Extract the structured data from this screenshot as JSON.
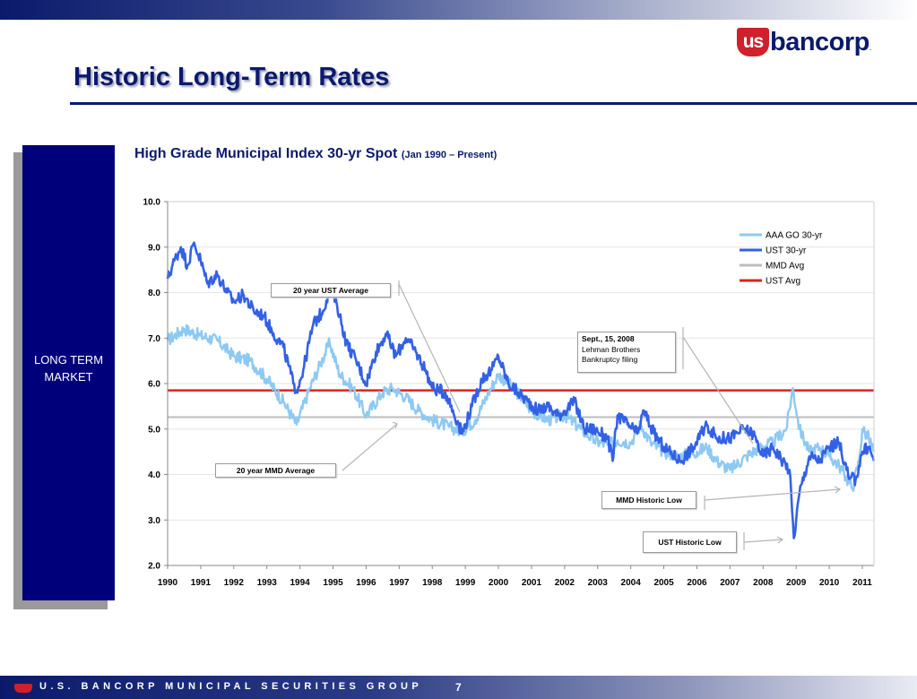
{
  "page": {
    "title": "Historic Long-Term Rates",
    "logo": {
      "mark": "us",
      "text": "bancorp",
      "reg": "."
    },
    "side_label": "LONG TERM MARKET",
    "footer": "U.S. BANCORP MUNICIPAL SECURITIES GROUP",
    "page_number": "7",
    "colors": {
      "navy": "#0b1a6b",
      "box": "#00007a",
      "red": "#d0202c"
    }
  },
  "chart_data": {
    "type": "line",
    "title": "High Grade Municipal Index 30-yr Spot",
    "subtitle": "(Jan 1990 – Present)",
    "ylim": [
      2.0,
      10.0
    ],
    "y_ticks": [
      "10.0",
      "9.0",
      "8.0",
      "7.0",
      "6.0",
      "5.0",
      "4.0",
      "3.0",
      "2.0"
    ],
    "x_ticks": [
      "1990",
      "1991",
      "1992",
      "1993",
      "1994",
      "1995",
      "1996",
      "1997",
      "1998",
      "1999",
      "2000",
      "2001",
      "2002",
      "2003",
      "2004",
      "2005",
      "2006",
      "2007",
      "2008",
      "2009",
      "2010",
      "2011"
    ],
    "grid": "horizontal",
    "legend": "top-right",
    "series": [
      {
        "name": "AAA GO 30-yr",
        "color": "#8ec9f2",
        "points": [
          [
            1990.0,
            6.95
          ],
          [
            1990.5,
            7.2
          ],
          [
            1991.0,
            7.05
          ],
          [
            1991.5,
            6.95
          ],
          [
            1992.0,
            6.6
          ],
          [
            1992.5,
            6.5
          ],
          [
            1993.0,
            6.1
          ],
          [
            1993.5,
            5.6
          ],
          [
            1993.9,
            5.1
          ],
          [
            1994.3,
            5.9
          ],
          [
            1994.6,
            6.4
          ],
          [
            1994.9,
            6.9
          ],
          [
            1995.2,
            6.2
          ],
          [
            1995.6,
            5.9
          ],
          [
            1996.0,
            5.3
          ],
          [
            1996.5,
            5.8
          ],
          [
            1996.8,
            5.9
          ],
          [
            1997.2,
            5.7
          ],
          [
            1997.6,
            5.4
          ],
          [
            1998.0,
            5.2
          ],
          [
            1998.5,
            5.05
          ],
          [
            1998.9,
            4.95
          ],
          [
            1999.3,
            5.2
          ],
          [
            1999.7,
            5.8
          ],
          [
            2000.0,
            6.2
          ],
          [
            2000.3,
            6.0
          ],
          [
            2000.7,
            5.7
          ],
          [
            2001.0,
            5.4
          ],
          [
            2001.5,
            5.2
          ],
          [
            2002.0,
            5.3
          ],
          [
            2002.5,
            5.0
          ],
          [
            2002.9,
            4.75
          ],
          [
            2003.3,
            4.65
          ],
          [
            2003.6,
            4.75
          ],
          [
            2004.0,
            4.7
          ],
          [
            2004.3,
            5.1
          ],
          [
            2004.6,
            4.7
          ],
          [
            2005.0,
            4.5
          ],
          [
            2005.5,
            4.4
          ],
          [
            2006.0,
            4.5
          ],
          [
            2006.3,
            4.6
          ],
          [
            2006.6,
            4.3
          ],
          [
            2007.0,
            4.1
          ],
          [
            2007.5,
            4.4
          ],
          [
            2007.9,
            4.6
          ],
          [
            2008.3,
            4.7
          ],
          [
            2008.7,
            5.0
          ],
          [
            2008.9,
            5.9
          ],
          [
            2009.1,
            5.0
          ],
          [
            2009.4,
            4.5
          ],
          [
            2009.7,
            4.6
          ],
          [
            2010.0,
            4.4
          ],
          [
            2010.3,
            4.2
          ],
          [
            2010.7,
            3.7
          ],
          [
            2010.9,
            4.3
          ],
          [
            2011.0,
            5.0
          ],
          [
            2011.2,
            4.8
          ],
          [
            2011.35,
            4.5
          ]
        ]
      },
      {
        "name": "UST 30-yr",
        "color": "#3361e6",
        "points": [
          [
            1990.0,
            8.3
          ],
          [
            1990.2,
            8.7
          ],
          [
            1990.4,
            9.0
          ],
          [
            1990.6,
            8.6
          ],
          [
            1990.8,
            9.1
          ],
          [
            1991.0,
            8.7
          ],
          [
            1991.2,
            8.2
          ],
          [
            1991.5,
            8.4
          ],
          [
            1991.8,
            8.0
          ],
          [
            1992.0,
            7.8
          ],
          [
            1992.3,
            7.95
          ],
          [
            1992.6,
            7.6
          ],
          [
            1992.9,
            7.5
          ],
          [
            1993.2,
            7.1
          ],
          [
            1993.5,
            6.8
          ],
          [
            1993.8,
            6.0
          ],
          [
            1993.9,
            5.85
          ],
          [
            1994.1,
            6.3
          ],
          [
            1994.4,
            7.3
          ],
          [
            1994.7,
            7.6
          ],
          [
            1994.9,
            8.1
          ],
          [
            1995.1,
            7.8
          ],
          [
            1995.4,
            6.9
          ],
          [
            1995.7,
            6.5
          ],
          [
            1996.0,
            6.0
          ],
          [
            1996.3,
            6.7
          ],
          [
            1996.6,
            7.1
          ],
          [
            1996.9,
            6.6
          ],
          [
            1997.2,
            7.0
          ],
          [
            1997.5,
            6.7
          ],
          [
            1997.8,
            6.3
          ],
          [
            1998.0,
            5.9
          ],
          [
            1998.4,
            5.8
          ],
          [
            1998.8,
            5.1
          ],
          [
            1998.9,
            4.9
          ],
          [
            1999.2,
            5.5
          ],
          [
            1999.5,
            6.1
          ],
          [
            1999.8,
            6.3
          ],
          [
            2000.0,
            6.6
          ],
          [
            2000.3,
            6.0
          ],
          [
            2000.6,
            5.8
          ],
          [
            2000.9,
            5.6
          ],
          [
            2001.2,
            5.4
          ],
          [
            2001.5,
            5.5
          ],
          [
            2001.8,
            5.3
          ],
          [
            2002.0,
            5.4
          ],
          [
            2002.3,
            5.6
          ],
          [
            2002.6,
            5.0
          ],
          [
            2002.9,
            5.0
          ],
          [
            2003.3,
            4.8
          ],
          [
            2003.45,
            4.3
          ],
          [
            2003.6,
            5.3
          ],
          [
            2003.9,
            5.1
          ],
          [
            2004.2,
            4.9
          ],
          [
            2004.4,
            5.4
          ],
          [
            2004.7,
            4.9
          ],
          [
            2005.0,
            4.6
          ],
          [
            2005.5,
            4.3
          ],
          [
            2005.9,
            4.6
          ],
          [
            2006.3,
            5.1
          ],
          [
            2006.6,
            4.8
          ],
          [
            2007.0,
            4.8
          ],
          [
            2007.4,
            5.0
          ],
          [
            2007.7,
            4.9
          ],
          [
            2008.0,
            4.4
          ],
          [
            2008.3,
            4.6
          ],
          [
            2008.6,
            4.3
          ],
          [
            2008.8,
            4.1
          ],
          [
            2008.93,
            2.6
          ],
          [
            2009.1,
            3.6
          ],
          [
            2009.4,
            4.4
          ],
          [
            2009.7,
            4.3
          ],
          [
            2010.0,
            4.6
          ],
          [
            2010.3,
            4.7
          ],
          [
            2010.6,
            3.9
          ],
          [
            2010.8,
            3.9
          ],
          [
            2011.0,
            4.5
          ],
          [
            2011.2,
            4.6
          ],
          [
            2011.35,
            4.3
          ]
        ]
      },
      {
        "name": "MMD Avg",
        "color": "#bdbdbd",
        "value": 5.26
      },
      {
        "name": "UST Avg",
        "color": "#e02020",
        "value": 5.85
      }
    ],
    "annotations": [
      {
        "text": "20 year UST Average"
      },
      {
        "text": "20 year MMD Average"
      },
      {
        "lines": [
          "Sept., 15, 2008",
          "Lehman Brothers",
          "Bankruptcy filing"
        ]
      },
      {
        "text": "MMD Historic Low"
      },
      {
        "text": "UST Historic Low"
      }
    ]
  }
}
